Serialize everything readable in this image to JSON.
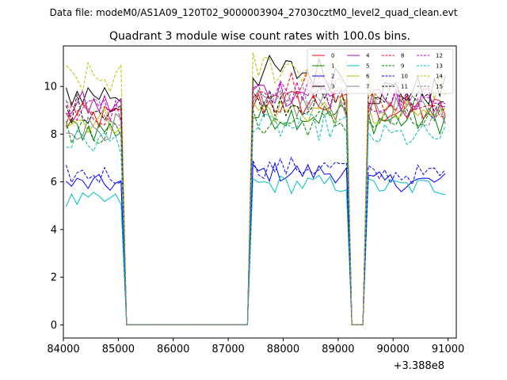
{
  "suptitle": "Data file: modeM0/AS1A09_120T02_9000003904_27030cztM0_level2_quad_clean.evt",
  "chart_data": {
    "type": "line",
    "title": "Quadrant 3 module wise count rates with 100.0s bins.",
    "xlabel": "",
    "ylabel": "",
    "x_offset_label": "+3.388e8",
    "xlim": [
      84000,
      91150
    ],
    "ylim": [
      -0.55,
      11.7
    ],
    "xticks": [
      84000,
      85000,
      86000,
      87000,
      88000,
      89000,
      90000,
      91000
    ],
    "yticks": [
      0,
      2,
      4,
      6,
      8,
      10
    ],
    "grid": false,
    "legend_location": "top-right",
    "legend_columns": 4,
    "segments": [
      [
        84050,
        85050
      ],
      [
        85250,
        87350
      ],
      [
        87450,
        89150
      ],
      [
        89250,
        89450
      ],
      [
        89550,
        90950
      ]
    ],
    "series": [
      {
        "name": "0",
        "color": "#ff0000",
        "dash": "solid",
        "levels": [
          8.7,
          0,
          9.3,
          0,
          9.0
        ]
      },
      {
        "name": "1",
        "color": "#008000",
        "dash": "solid",
        "levels": [
          8.2,
          0,
          8.8,
          0,
          8.6
        ]
      },
      {
        "name": "2",
        "color": "#0000ff",
        "dash": "solid",
        "levels": [
          5.9,
          0,
          6.4,
          0,
          6.0
        ]
      },
      {
        "name": "3",
        "color": "#000000",
        "dash": "solid",
        "levels": [
          9.7,
          0,
          10.6,
          0,
          9.8
        ]
      },
      {
        "name": "4",
        "color": "#bf00bf",
        "dash": "solid",
        "levels": [
          9.2,
          0,
          9.8,
          0,
          9.3
        ]
      },
      {
        "name": "5",
        "color": "#00bfbf",
        "dash": "solid",
        "levels": [
          5.2,
          0,
          5.9,
          0,
          5.8
        ]
      },
      {
        "name": "6",
        "color": "#bfbf00",
        "dash": "solid",
        "levels": [
          8.6,
          0,
          9.0,
          0,
          8.8
        ]
      },
      {
        "name": "7",
        "color": "#808080",
        "dash": "solid",
        "levels": [
          8.3,
          0,
          9.2,
          0,
          9.0
        ]
      },
      {
        "name": "8",
        "color": "#ff0000",
        "dash": "dashed",
        "levels": [
          8.9,
          0,
          10.1,
          0,
          9.3
        ]
      },
      {
        "name": "9",
        "color": "#008000",
        "dash": "dashed",
        "levels": [
          8.1,
          0,
          8.5,
          0,
          8.5
        ]
      },
      {
        "name": "10",
        "color": "#0000ff",
        "dash": "dashed",
        "levels": [
          6.3,
          0,
          6.6,
          0,
          6.3
        ]
      },
      {
        "name": "11",
        "color": "#000000",
        "dash": "dashed",
        "levels": [
          9.1,
          0,
          9.4,
          0,
          9.6
        ]
      },
      {
        "name": "12",
        "color": "#bf00bf",
        "dash": "dashed",
        "levels": [
          9.0,
          0,
          9.7,
          0,
          9.4
        ]
      },
      {
        "name": "13",
        "color": "#00bfbf",
        "dash": "dashed",
        "levels": [
          7.7,
          0,
          8.3,
          0,
          7.9
        ]
      },
      {
        "name": "14",
        "color": "#bfbf00",
        "dash": "dashed",
        "levels": [
          10.3,
          0,
          10.8,
          0,
          10.0
        ]
      },
      {
        "name": "15",
        "color": "#808080",
        "dash": "dashed",
        "levels": [
          8.9,
          0,
          9.5,
          0,
          9.0
        ]
      }
    ]
  }
}
